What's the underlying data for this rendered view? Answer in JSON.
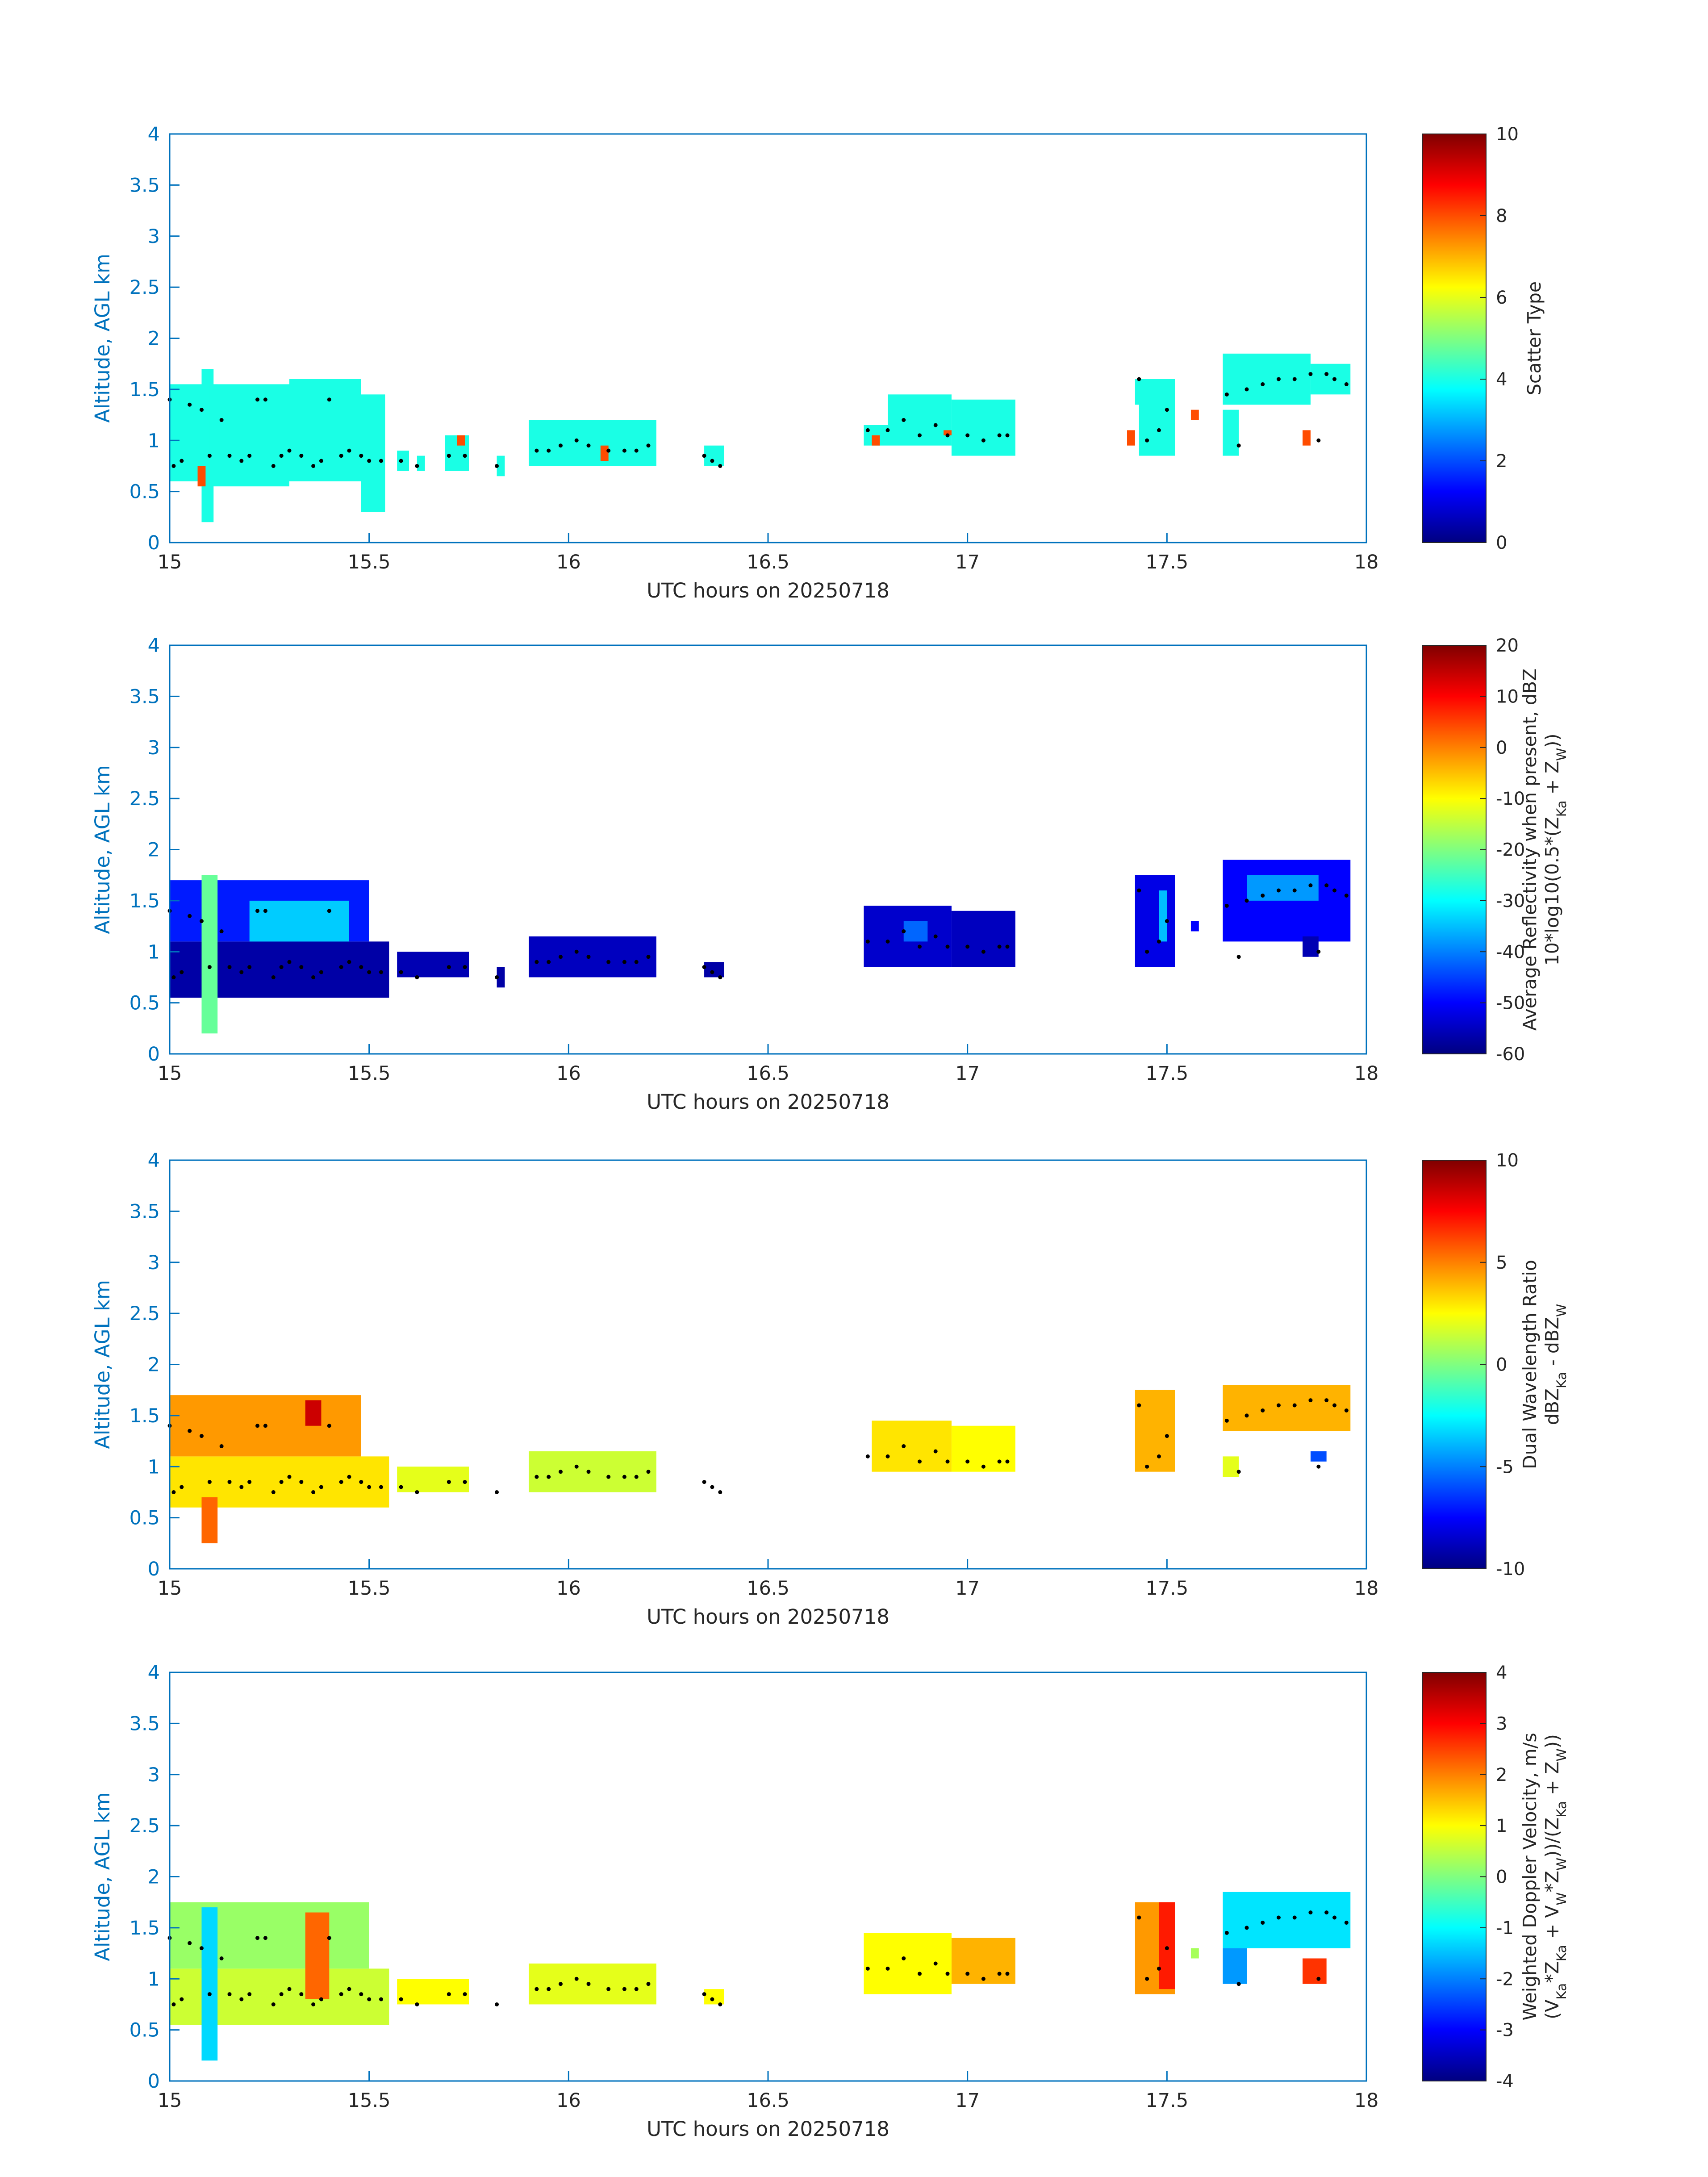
{
  "figure": {
    "axis_color": "#0072BD",
    "text_color": "#262626",
    "marker_color": "#000000",
    "colormap": "jet"
  },
  "chart_data": [
    {
      "type": "heatmap",
      "xlabel": "UTC hours on 20250718",
      "ylabel": "Altitude, AGL km",
      "xlim": [
        15,
        18
      ],
      "ylim": [
        0,
        4
      ],
      "xticks": [
        "15",
        "15.5",
        "16",
        "16.5",
        "17",
        "17.5",
        "18"
      ],
      "yticks": [
        "0",
        "0.5",
        "1",
        "1.5",
        "2",
        "2.5",
        "3",
        "3.5",
        "4"
      ],
      "colorbar": {
        "label_lines": [
          "Scatter Type"
        ],
        "range": [
          0,
          10
        ],
        "ticks": [
          "0",
          "2",
          "4",
          "6",
          "8",
          "10"
        ]
      },
      "blocks": [
        {
          "x": [
            15.0,
            15.12
          ],
          "y": [
            0.6,
            1.55
          ],
          "v": 4.0
        },
        {
          "x": [
            15.08,
            15.11
          ],
          "y": [
            0.2,
            1.7
          ],
          "v": 4.0
        },
        {
          "x": [
            15.1,
            15.3
          ],
          "y": [
            0.55,
            1.55
          ],
          "v": 4.0
        },
        {
          "x": [
            15.3,
            15.48
          ],
          "y": [
            0.6,
            1.6
          ],
          "v": 4.0
        },
        {
          "x": [
            15.48,
            15.54
          ],
          "y": [
            0.3,
            1.45
          ],
          "v": 4.0
        },
        {
          "x": [
            15.57,
            15.6
          ],
          "y": [
            0.7,
            0.9
          ],
          "v": 4.0
        },
        {
          "x": [
            15.62,
            15.64
          ],
          "y": [
            0.7,
            0.85
          ],
          "v": 4.0
        },
        {
          "x": [
            15.69,
            15.75
          ],
          "y": [
            0.7,
            1.05
          ],
          "v": 4.0
        },
        {
          "x": [
            15.82,
            15.84
          ],
          "y": [
            0.65,
            0.85
          ],
          "v": 4.0
        },
        {
          "x": [
            15.9,
            16.22
          ],
          "y": [
            0.75,
            1.2
          ],
          "v": 4.0
        },
        {
          "x": [
            16.34,
            16.39
          ],
          "y": [
            0.75,
            0.95
          ],
          "v": 4.0
        },
        {
          "x": [
            16.74,
            16.8
          ],
          "y": [
            0.95,
            1.15
          ],
          "v": 4.0
        },
        {
          "x": [
            16.8,
            16.96
          ],
          "y": [
            0.95,
            1.45
          ],
          "v": 4.0
        },
        {
          "x": [
            16.96,
            17.12
          ],
          "y": [
            0.85,
            1.4
          ],
          "v": 4.0
        },
        {
          "x": [
            17.42,
            17.44
          ],
          "y": [
            1.35,
            1.6
          ],
          "v": 4.0
        },
        {
          "x": [
            17.43,
            17.52
          ],
          "y": [
            0.85,
            1.6
          ],
          "v": 4.0
        },
        {
          "x": [
            17.64,
            17.68
          ],
          "y": [
            0.85,
            1.3
          ],
          "v": 4.0
        },
        {
          "x": [
            17.64,
            17.86
          ],
          "y": [
            1.35,
            1.85
          ],
          "v": 4.0
        },
        {
          "x": [
            17.86,
            17.96
          ],
          "y": [
            1.45,
            1.75
          ],
          "v": 4.0
        },
        {
          "x": [
            15.07,
            15.09
          ],
          "y": [
            0.55,
            0.75
          ],
          "v": 8.0
        },
        {
          "x": [
            15.72,
            15.74
          ],
          "y": [
            0.95,
            1.05
          ],
          "v": 8.0
        },
        {
          "x": [
            16.08,
            16.1
          ],
          "y": [
            0.8,
            0.95
          ],
          "v": 8.0
        },
        {
          "x": [
            16.76,
            16.78
          ],
          "y": [
            0.95,
            1.05
          ],
          "v": 8.0
        },
        {
          "x": [
            16.94,
            16.96
          ],
          "y": [
            1.05,
            1.1
          ],
          "v": 8.0
        },
        {
          "x": [
            17.4,
            17.42
          ],
          "y": [
            0.95,
            1.1
          ],
          "v": 8.0
        },
        {
          "x": [
            17.56,
            17.58
          ],
          "y": [
            1.2,
            1.3
          ],
          "v": 8.0
        },
        {
          "x": [
            17.84,
            17.86
          ],
          "y": [
            0.95,
            1.1
          ],
          "v": 8.0
        }
      ]
    },
    {
      "type": "heatmap",
      "xlabel": "UTC hours on 20250718",
      "ylabel": "Altitude, AGL km",
      "xlim": [
        15,
        18
      ],
      "ylim": [
        0,
        4
      ],
      "xticks": [
        "15",
        "15.5",
        "16",
        "16.5",
        "17",
        "17.5",
        "18"
      ],
      "yticks": [
        "0",
        "0.5",
        "1",
        "1.5",
        "2",
        "2.5",
        "3",
        "3.5",
        "4"
      ],
      "colorbar": {
        "label_lines": [
          "Average Reflectivity when present, dBZ",
          "10*log10(0.5*(Z_Ka + Z_W))"
        ],
        "range": [
          -60,
          20
        ],
        "ticks": [
          "-60",
          "-50",
          "-40",
          "-30",
          "-20",
          "-10",
          "0",
          "10",
          "20"
        ]
      },
      "blocks": [
        {
          "x": [
            15.0,
            15.55
          ],
          "y": [
            0.55,
            1.1
          ],
          "v": -57.0
        },
        {
          "x": [
            15.0,
            15.5
          ],
          "y": [
            1.1,
            1.7
          ],
          "v": -48.0
        },
        {
          "x": [
            15.08,
            15.12
          ],
          "y": [
            0.2,
            1.75
          ],
          "v": -22.0
        },
        {
          "x": [
            15.2,
            15.45
          ],
          "y": [
            1.1,
            1.5
          ],
          "v": -34.0
        },
        {
          "x": [
            15.57,
            15.75
          ],
          "y": [
            0.75,
            1.0
          ],
          "v": -56.0
        },
        {
          "x": [
            15.82,
            15.84
          ],
          "y": [
            0.65,
            0.85
          ],
          "v": -57.0
        },
        {
          "x": [
            15.9,
            16.22
          ],
          "y": [
            0.75,
            1.15
          ],
          "v": -55.0
        },
        {
          "x": [
            16.34,
            16.39
          ],
          "y": [
            0.75,
            0.9
          ],
          "v": -57.0
        },
        {
          "x": [
            16.74,
            16.96
          ],
          "y": [
            0.85,
            1.45
          ],
          "v": -54.0
        },
        {
          "x": [
            16.96,
            17.12
          ],
          "y": [
            0.85,
            1.4
          ],
          "v": -55.0
        },
        {
          "x": [
            16.84,
            16.9
          ],
          "y": [
            1.1,
            1.3
          ],
          "v": -42.0
        },
        {
          "x": [
            17.42,
            17.52
          ],
          "y": [
            0.85,
            1.75
          ],
          "v": -52.0
        },
        {
          "x": [
            17.48,
            17.5
          ],
          "y": [
            1.1,
            1.6
          ],
          "v": -35.0
        },
        {
          "x": [
            17.56,
            17.58
          ],
          "y": [
            1.2,
            1.3
          ],
          "v": -50.0
        },
        {
          "x": [
            17.64,
            17.96
          ],
          "y": [
            1.1,
            1.9
          ],
          "v": -50.0
        },
        {
          "x": [
            17.7,
            17.88
          ],
          "y": [
            1.5,
            1.75
          ],
          "v": -38.0
        },
        {
          "x": [
            17.84,
            17.88
          ],
          "y": [
            0.95,
            1.15
          ],
          "v": -56.0
        }
      ]
    },
    {
      "type": "heatmap",
      "xlabel": "UTC hours on 20250718",
      "ylabel": "Altitude, AGL km",
      "xlim": [
        15,
        18
      ],
      "ylim": [
        0,
        4
      ],
      "xticks": [
        "15",
        "15.5",
        "16",
        "16.5",
        "17",
        "17.5",
        "18"
      ],
      "yticks": [
        "0",
        "0.5",
        "1",
        "1.5",
        "2",
        "2.5",
        "3",
        "3.5",
        "4"
      ],
      "colorbar": {
        "label_lines": [
          "Dual Wavelength Ratio",
          "dBZ_Ka - dBZ_W"
        ],
        "range": [
          -10,
          10
        ],
        "ticks": [
          "-10",
          "-5",
          "0",
          "5",
          "10"
        ]
      },
      "blocks": [
        {
          "x": [
            15.0,
            15.55
          ],
          "y": [
            0.6,
            1.1
          ],
          "v": 3.0
        },
        {
          "x": [
            15.0,
            15.48
          ],
          "y": [
            1.1,
            1.7
          ],
          "v": 4.5
        },
        {
          "x": [
            15.08,
            15.12
          ],
          "y": [
            0.25,
            0.7
          ],
          "v": 5.5
        },
        {
          "x": [
            15.34,
            15.38
          ],
          "y": [
            1.4,
            1.65
          ],
          "v": 8.5
        },
        {
          "x": [
            15.57,
            15.75
          ],
          "y": [
            0.75,
            1.0
          ],
          "v": 2.0
        },
        {
          "x": [
            15.9,
            16.22
          ],
          "y": [
            0.75,
            1.15
          ],
          "v": 1.5
        },
        {
          "x": [
            16.76,
            16.96
          ],
          "y": [
            0.95,
            1.45
          ],
          "v": 3.0
        },
        {
          "x": [
            16.96,
            17.12
          ],
          "y": [
            0.95,
            1.4
          ],
          "v": 2.5
        },
        {
          "x": [
            17.42,
            17.52
          ],
          "y": [
            0.95,
            1.75
          ],
          "v": 4.0
        },
        {
          "x": [
            17.64,
            17.96
          ],
          "y": [
            1.35,
            1.8
          ],
          "v": 4.0
        },
        {
          "x": [
            17.64,
            17.68
          ],
          "y": [
            0.9,
            1.1
          ],
          "v": 2.0
        },
        {
          "x": [
            17.86,
            17.9
          ],
          "y": [
            1.05,
            1.15
          ],
          "v": -6.0
        }
      ]
    },
    {
      "type": "heatmap",
      "xlabel": "UTC hours on 20250718",
      "ylabel": "Altitude, AGL km",
      "xlim": [
        15,
        18
      ],
      "ylim": [
        0,
        4
      ],
      "xticks": [
        "15",
        "15.5",
        "16",
        "16.5",
        "17",
        "17.5",
        "18"
      ],
      "yticks": [
        "0",
        "0.5",
        "1",
        "1.5",
        "2",
        "2.5",
        "3",
        "3.5",
        "4"
      ],
      "colorbar": {
        "label_lines": [
          "Weighted Doppler Velocity, m/s",
          "(V_Ka*Z_Ka + V_W*Z_W))/(Z_Ka + Z_W))"
        ],
        "range": [
          -4,
          4
        ],
        "ticks": [
          "-4",
          "-3",
          "-2",
          "-1",
          "0",
          "1",
          "2",
          "3",
          "4"
        ]
      },
      "blocks": [
        {
          "x": [
            15.0,
            15.55
          ],
          "y": [
            0.55,
            1.1
          ],
          "v": 0.6
        },
        {
          "x": [
            15.0,
            15.5
          ],
          "y": [
            1.1,
            1.75
          ],
          "v": 0.2
        },
        {
          "x": [
            15.08,
            15.12
          ],
          "y": [
            0.2,
            1.7
          ],
          "v": -1.3
        },
        {
          "x": [
            15.34,
            15.4
          ],
          "y": [
            0.8,
            1.65
          ],
          "v": 2.2
        },
        {
          "x": [
            15.57,
            15.75
          ],
          "y": [
            0.75,
            1.0
          ],
          "v": 1.0
        },
        {
          "x": [
            15.9,
            16.22
          ],
          "y": [
            0.75,
            1.15
          ],
          "v": 0.8
        },
        {
          "x": [
            16.34,
            16.39
          ],
          "y": [
            0.75,
            0.9
          ],
          "v": 1.0
        },
        {
          "x": [
            16.74,
            16.96
          ],
          "y": [
            0.85,
            1.45
          ],
          "v": 1.0
        },
        {
          "x": [
            16.96,
            17.12
          ],
          "y": [
            0.95,
            1.4
          ],
          "v": 1.6
        },
        {
          "x": [
            17.42,
            17.52
          ],
          "y": [
            0.85,
            1.75
          ],
          "v": 1.8
        },
        {
          "x": [
            17.48,
            17.52
          ],
          "y": [
            0.9,
            1.75
          ],
          "v": 2.8
        },
        {
          "x": [
            17.56,
            17.58
          ],
          "y": [
            1.2,
            1.3
          ],
          "v": 0.3
        },
        {
          "x": [
            17.64,
            17.96
          ],
          "y": [
            1.3,
            1.85
          ],
          "v": -1.2
        },
        {
          "x": [
            17.64,
            17.7
          ],
          "y": [
            0.95,
            1.3
          ],
          "v": -1.8
        },
        {
          "x": [
            17.84,
            17.9
          ],
          "y": [
            0.95,
            1.2
          ],
          "v": 2.6
        }
      ]
    }
  ],
  "markers": [
    [
      15.0,
      1.4
    ],
    [
      15.01,
      0.75
    ],
    [
      15.03,
      0.8
    ],
    [
      15.05,
      1.35
    ],
    [
      15.08,
      1.3
    ],
    [
      15.1,
      0.85
    ],
    [
      15.13,
      1.2
    ],
    [
      15.15,
      0.85
    ],
    [
      15.18,
      0.8
    ],
    [
      15.2,
      0.85
    ],
    [
      15.22,
      1.4
    ],
    [
      15.24,
      1.4
    ],
    [
      15.26,
      0.75
    ],
    [
      15.28,
      0.85
    ],
    [
      15.3,
      0.9
    ],
    [
      15.33,
      0.85
    ],
    [
      15.36,
      0.75
    ],
    [
      15.38,
      0.8
    ],
    [
      15.4,
      1.4
    ],
    [
      15.43,
      0.85
    ],
    [
      15.45,
      0.9
    ],
    [
      15.48,
      0.85
    ],
    [
      15.5,
      0.8
    ],
    [
      15.53,
      0.8
    ],
    [
      15.58,
      0.8
    ],
    [
      15.62,
      0.75
    ],
    [
      15.7,
      0.85
    ],
    [
      15.74,
      0.85
    ],
    [
      15.82,
      0.75
    ],
    [
      15.92,
      0.9
    ],
    [
      15.95,
      0.9
    ],
    [
      15.98,
      0.95
    ],
    [
      16.02,
      1.0
    ],
    [
      16.05,
      0.95
    ],
    [
      16.1,
      0.9
    ],
    [
      16.14,
      0.9
    ],
    [
      16.17,
      0.9
    ],
    [
      16.2,
      0.95
    ],
    [
      16.34,
      0.85
    ],
    [
      16.36,
      0.8
    ],
    [
      16.38,
      0.75
    ],
    [
      16.75,
      1.1
    ],
    [
      16.8,
      1.1
    ],
    [
      16.84,
      1.2
    ],
    [
      16.88,
      1.05
    ],
    [
      16.92,
      1.15
    ],
    [
      16.95,
      1.05
    ],
    [
      17.0,
      1.05
    ],
    [
      17.04,
      1.0
    ],
    [
      17.08,
      1.05
    ],
    [
      17.1,
      1.05
    ],
    [
      17.43,
      1.6
    ],
    [
      17.45,
      1.0
    ],
    [
      17.48,
      1.1
    ],
    [
      17.5,
      1.3
    ],
    [
      17.65,
      1.45
    ],
    [
      17.68,
      0.95
    ],
    [
      17.7,
      1.5
    ],
    [
      17.74,
      1.55
    ],
    [
      17.78,
      1.6
    ],
    [
      17.82,
      1.6
    ],
    [
      17.86,
      1.65
    ],
    [
      17.88,
      1.0
    ],
    [
      17.9,
      1.65
    ],
    [
      17.92,
      1.6
    ],
    [
      17.95,
      1.55
    ]
  ]
}
